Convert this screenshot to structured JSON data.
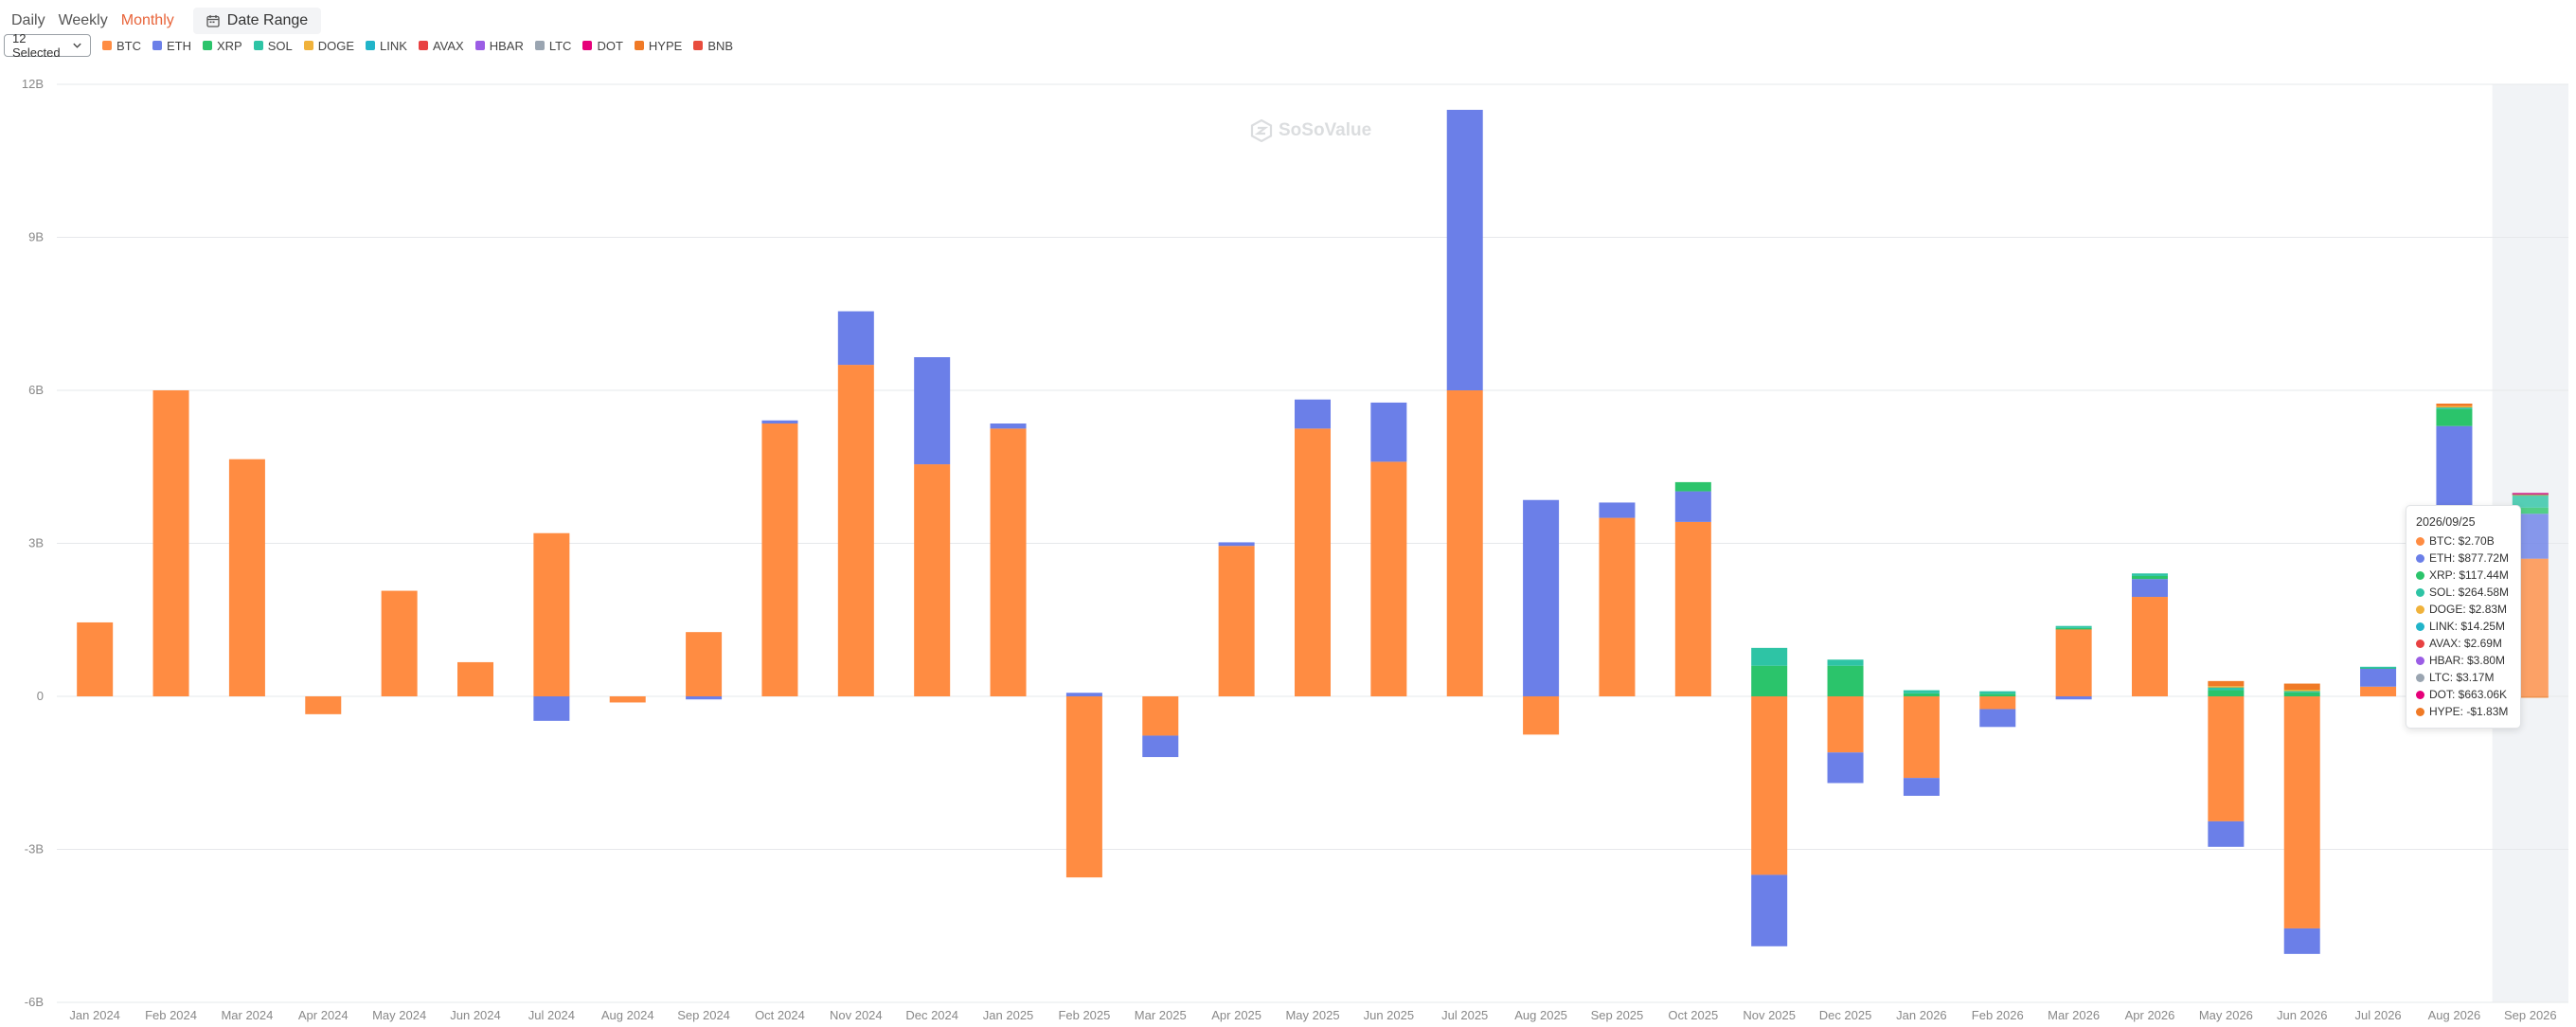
{
  "tabs": [
    {
      "label": "Daily",
      "active": false
    },
    {
      "label": "Weekly",
      "active": false
    },
    {
      "label": "Monthly",
      "active": true
    }
  ],
  "date_range_label": "Date Range",
  "select_label": "12 Selected",
  "watermark_text": "SoSoValue",
  "legend": [
    {
      "name": "BTC",
      "color": "#ff8c42"
    },
    {
      "name": "ETH",
      "color": "#6b7fe8"
    },
    {
      "name": "XRP",
      "color": "#2bc46b"
    },
    {
      "name": "SOL",
      "color": "#2ec4a5"
    },
    {
      "name": "DOGE",
      "color": "#f0b23b"
    },
    {
      "name": "LINK",
      "color": "#21b4c9"
    },
    {
      "name": "AVAX",
      "color": "#e84142"
    },
    {
      "name": "HBAR",
      "color": "#9b5de5"
    },
    {
      "name": "LTC",
      "color": "#9aa5b1"
    },
    {
      "name": "DOT",
      "color": "#e6007a"
    },
    {
      "name": "HYPE",
      "color": "#f07a26"
    },
    {
      "name": "BNB",
      "color": "#e84c3d"
    }
  ],
  "tooltip": {
    "date": "2026/09/25",
    "rows": [
      {
        "label": "BTC: $2.70B",
        "color": "#ff8c42"
      },
      {
        "label": "ETH: $877.72M",
        "color": "#6b7fe8"
      },
      {
        "label": "XRP: $117.44M",
        "color": "#2bc46b"
      },
      {
        "label": "SOL: $264.58M",
        "color": "#2ec4a5"
      },
      {
        "label": "DOGE: $2.83M",
        "color": "#f0b23b"
      },
      {
        "label": "LINK: $14.25M",
        "color": "#21b4c9"
      },
      {
        "label": "AVAX: $2.69M",
        "color": "#e84142"
      },
      {
        "label": "HBAR: $3.80M",
        "color": "#9b5de5"
      },
      {
        "label": "LTC: $3.17M",
        "color": "#9aa5b1"
      },
      {
        "label": "DOT: $663.06K",
        "color": "#e6007a"
      },
      {
        "label": "HYPE: -$1.83M",
        "color": "#f07a26"
      }
    ]
  },
  "chart_data": {
    "type": "bar",
    "stacked": true,
    "categories": [
      "Jan 2024",
      "Feb 2024",
      "Mar 2024",
      "Apr 2024",
      "May 2024",
      "Jun 2024",
      "Jul 2024",
      "Aug 2024",
      "Sep 2024",
      "Oct 2024",
      "Nov 2024",
      "Dec 2024",
      "Jan 2025",
      "Feb 2025",
      "Mar 2025",
      "Apr 2025",
      "May 2025",
      "Jun 2025",
      "Jul 2025",
      "Aug 2025",
      "Sep 2025",
      "Oct 2025",
      "Nov 2025",
      "Dec 2025",
      "Jan 2026",
      "Feb 2026",
      "Mar 2026",
      "Apr 2026",
      "May 2026",
      "Jun 2026",
      "Jul 2026",
      "Aug 2026",
      "Sep 2026"
    ],
    "ylim": [
      -6,
      12
    ],
    "yticks": [
      {
        "value": 12,
        "label": "12B"
      },
      {
        "value": 9,
        "label": "9B"
      },
      {
        "value": 6,
        "label": "6B"
      },
      {
        "value": 3,
        "label": "3B"
      },
      {
        "value": 0,
        "label": "0"
      },
      {
        "value": -3,
        "label": "-3B"
      },
      {
        "value": -6,
        "label": "-6B"
      }
    ],
    "highlight_category": "Sep 2026",
    "series": [
      {
        "name": "BTC",
        "color": "#ff8c42",
        "values": [
          1.45,
          6.0,
          4.65,
          -0.35,
          2.07,
          0.67,
          3.2,
          -0.12,
          1.26,
          5.35,
          6.5,
          4.55,
          5.25,
          -3.55,
          -0.77,
          2.95,
          5.25,
          4.6,
          6.0,
          -0.75,
          3.5,
          3.42,
          -3.5,
          -1.1,
          -1.6,
          -0.25,
          1.32,
          1.95,
          -2.45,
          -4.55,
          0.19,
          2.7,
          2.7
        ]
      },
      {
        "name": "ETH",
        "color": "#6b7fe8",
        "values": [
          0,
          0,
          0,
          0,
          0,
          0,
          -0.48,
          0,
          -0.06,
          0.06,
          1.05,
          2.1,
          0.1,
          0.07,
          -0.42,
          0.07,
          0.57,
          1.16,
          5.5,
          3.85,
          0.3,
          0.6,
          -1.4,
          -0.6,
          -0.35,
          -0.35,
          -0.06,
          0.35,
          -0.5,
          -0.5,
          0.36,
          2.6,
          0.88
        ]
      },
      {
        "name": "XRP",
        "color": "#2bc46b",
        "values": [
          0,
          0,
          0,
          0,
          0,
          0,
          0,
          0,
          0,
          0,
          0,
          0,
          0,
          0,
          0,
          0,
          0,
          0,
          0,
          0,
          0,
          0.18,
          0.6,
          0.6,
          0.06,
          0.05,
          0.02,
          0.06,
          0.12,
          0.08,
          0.02,
          0.33,
          0.12
        ]
      },
      {
        "name": "SOL",
        "color": "#2ec4a5",
        "values": [
          0,
          0,
          0,
          0,
          0,
          0,
          0,
          0,
          0,
          0,
          0,
          0,
          0,
          0,
          0,
          0,
          0,
          0,
          0,
          0,
          0,
          0.0,
          0.35,
          0.12,
          0.06,
          0.05,
          0.04,
          0.05,
          0.06,
          0.04,
          0.01,
          0.05,
          0.26
        ]
      },
      {
        "name": "DOGE",
        "color": "#f0b23b",
        "values": [
          0,
          0,
          0,
          0,
          0,
          0,
          0,
          0,
          0,
          0,
          0,
          0,
          0,
          0,
          0,
          0,
          0,
          0,
          0,
          0,
          0,
          0,
          0,
          0,
          0,
          0,
          0,
          0,
          0.02,
          0.01,
          0,
          0.01,
          0.003
        ]
      },
      {
        "name": "LINK",
        "color": "#21b4c9",
        "values": [
          0,
          0,
          0,
          0,
          0,
          0,
          0,
          0,
          0,
          0,
          0,
          0,
          0,
          0,
          0,
          0,
          0,
          0,
          0,
          0,
          0,
          0,
          0,
          0,
          0,
          0,
          0,
          0,
          0,
          0,
          0,
          0,
          0.014
        ]
      },
      {
        "name": "AVAX",
        "color": "#e84142",
        "values": [
          0,
          0,
          0,
          0,
          0,
          0,
          0,
          0,
          0,
          0,
          0,
          0,
          0,
          0,
          0,
          0,
          0,
          0,
          0,
          0,
          0,
          0,
          0,
          0,
          0,
          0,
          0,
          0,
          0,
          0,
          0,
          0,
          0.003
        ]
      },
      {
        "name": "HBAR",
        "color": "#9b5de5",
        "values": [
          0,
          0,
          0,
          0,
          0,
          0,
          0,
          0,
          0,
          0,
          0,
          0,
          0,
          0,
          0,
          0,
          0,
          0,
          0,
          0,
          0,
          0,
          0,
          0,
          0,
          0,
          0,
          0,
          0,
          0,
          0,
          0,
          0.004
        ]
      },
      {
        "name": "LTC",
        "color": "#9aa5b1",
        "values": [
          0,
          0,
          0,
          0,
          0,
          0,
          0,
          0,
          0,
          0,
          0,
          0,
          0,
          0,
          0,
          0,
          0,
          0,
          0,
          0,
          0,
          0,
          0,
          0,
          0,
          0,
          0,
          0,
          0,
          0,
          0,
          0,
          0.003
        ]
      },
      {
        "name": "DOT",
        "color": "#e6007a",
        "values": [
          0,
          0,
          0,
          0,
          0,
          0,
          0,
          0,
          0,
          0,
          0,
          0,
          0,
          0,
          0,
          0,
          0,
          0,
          0,
          0,
          0,
          0,
          0,
          0,
          0,
          0,
          0,
          0,
          0,
          0,
          0,
          0,
          0.001
        ]
      },
      {
        "name": "HYPE",
        "color": "#f07a26",
        "values": [
          0,
          0,
          0,
          0,
          0,
          0,
          0,
          0,
          0,
          0,
          0,
          0,
          0,
          0,
          0,
          0,
          0,
          0,
          0,
          0,
          0,
          0,
          0,
          0,
          0,
          0,
          0,
          0,
          0.1,
          0.12,
          0,
          0.05,
          -0.002
        ]
      },
      {
        "name": "BNB",
        "color": "#e84c3d",
        "values": [
          0,
          0,
          0,
          0,
          0,
          0,
          0,
          0,
          0,
          0,
          0,
          0,
          0,
          0,
          0,
          0,
          0,
          0,
          0,
          0,
          0,
          0,
          0,
          0,
          0,
          0,
          0,
          0,
          0,
          0,
          0,
          0,
          0
        ]
      }
    ]
  }
}
